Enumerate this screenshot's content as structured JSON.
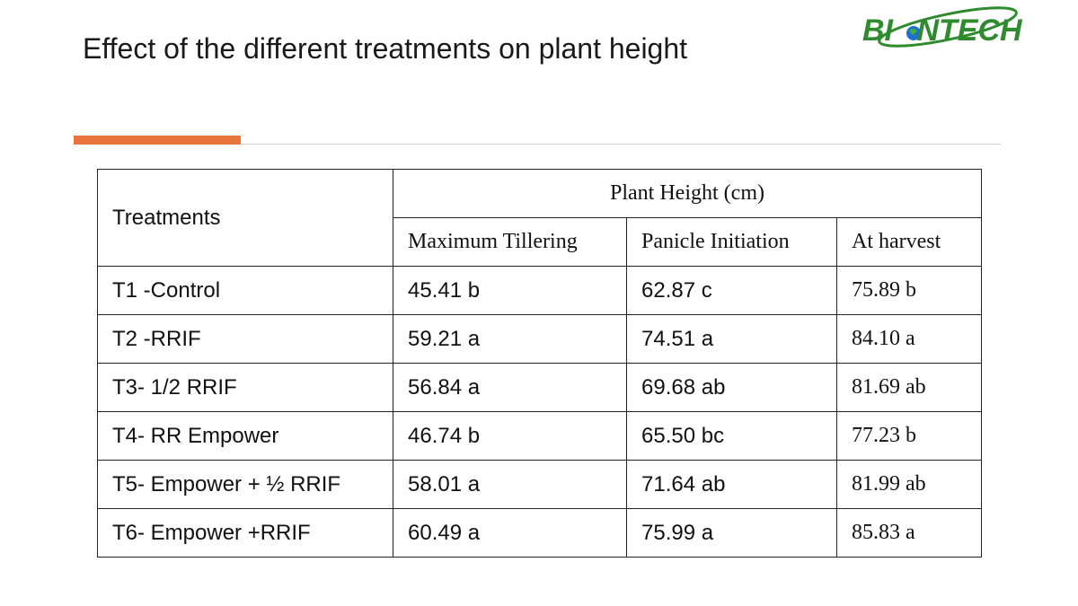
{
  "slide": {
    "title": "Effect of the different treatments on plant height",
    "accent_color": "#e8743b",
    "logo": {
      "text": "BIONTECH",
      "text_color": "#2e8b2e",
      "icon": "globe-icon"
    }
  },
  "table": {
    "treatments_header": "Treatments",
    "group_header": "Plant Height (cm)",
    "columns": [
      "Maximum Tillering",
      "Panicle Initiation",
      "At harvest"
    ],
    "rows": [
      {
        "treatment": "T1 -Control",
        "values": [
          "45.41 b",
          "62.87 c",
          "75.89 b"
        ]
      },
      {
        "treatment": "T2 -RRIF",
        "values": [
          "59.21 a",
          "74.51 a",
          "84.10 a"
        ]
      },
      {
        "treatment": "T3- 1/2 RRIF",
        "values": [
          "56.84 a",
          "69.68 ab",
          "81.69 ab"
        ]
      },
      {
        "treatment": "T4- RR Empower",
        "values": [
          "46.74 b",
          "65.50 bc",
          "77.23 b"
        ]
      },
      {
        "treatment": "T5- Empower + ½ RRIF",
        "values": [
          "58.01 a",
          "71.64 ab",
          "81.99 ab"
        ]
      },
      {
        "treatment": "T6- Empower +RRIF",
        "values": [
          "60.49 a",
          "75.99 a",
          "85.83 a"
        ]
      }
    ]
  }
}
